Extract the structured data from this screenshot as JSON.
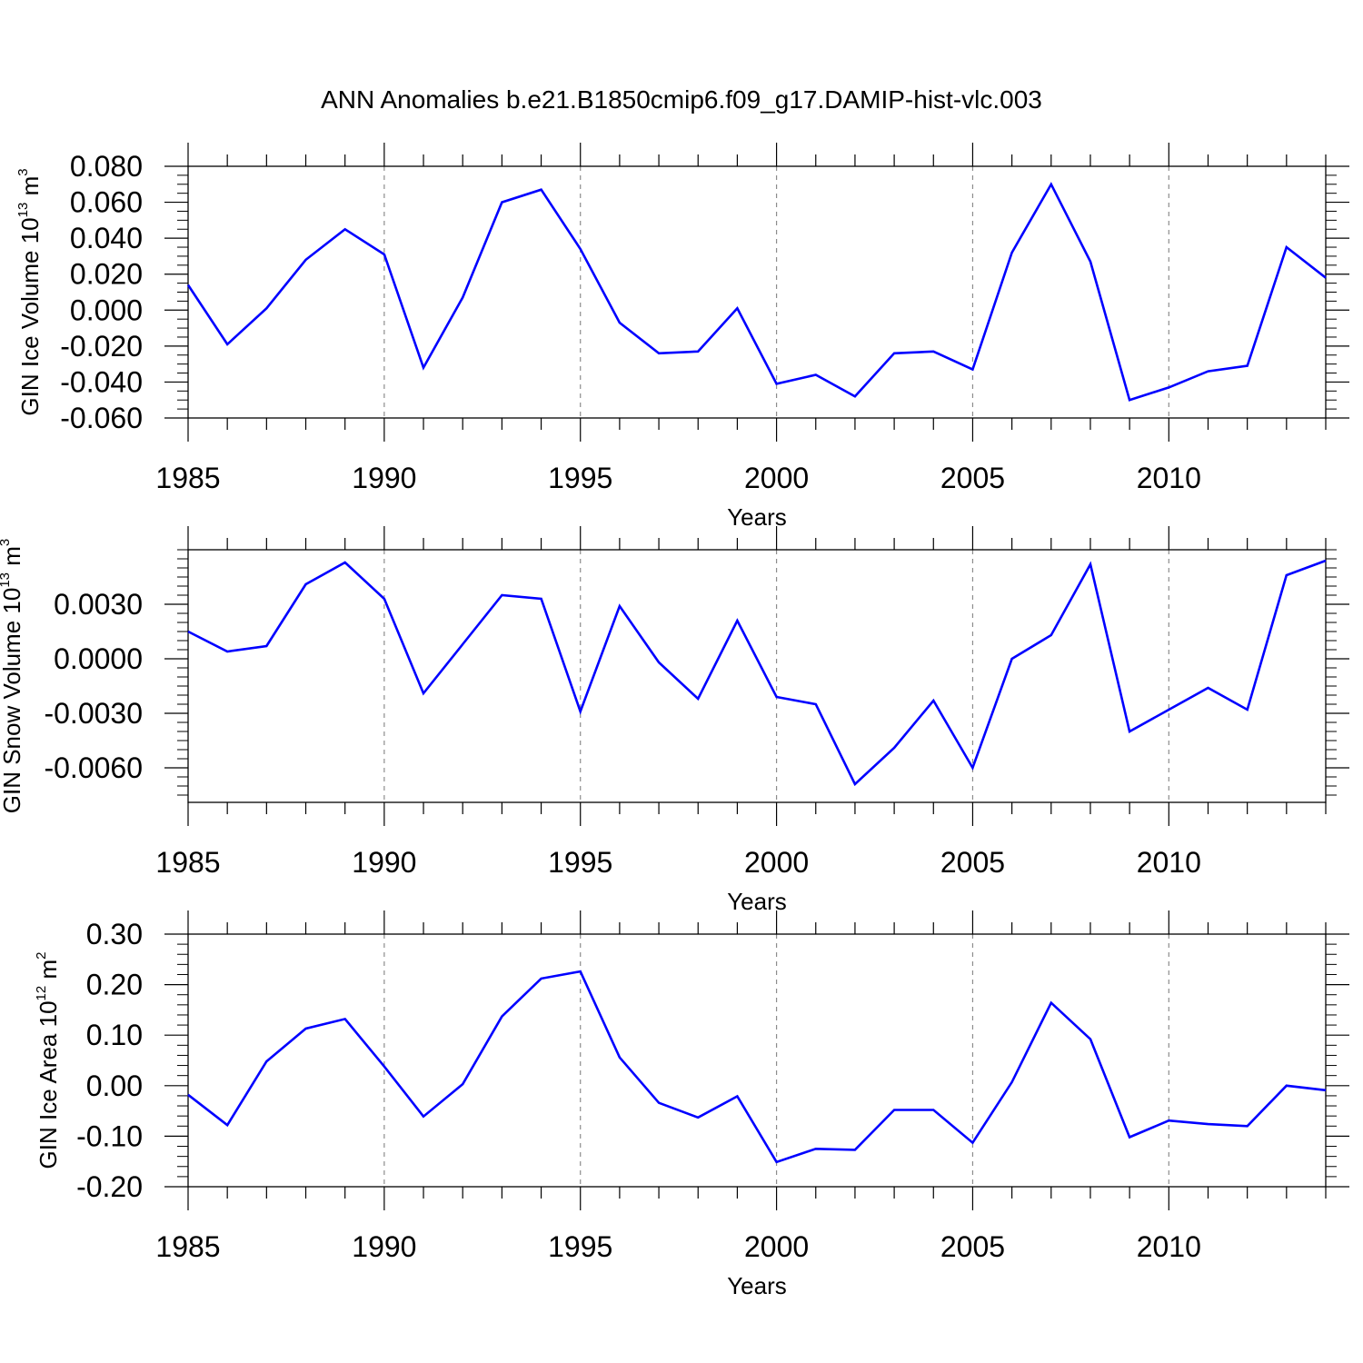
{
  "title": "ANN Anomalies b.e21.B1850cmip6.f09_g17.DAMIP-hist-vlc.003",
  "colors": {
    "line": "#0000ff",
    "axis": "#000000",
    "grid": "#8c8c8c"
  },
  "chart_data": [
    {
      "type": "line",
      "xlabel": "Years",
      "ylabel": {
        "main": "GIN Ice Volume 10",
        "exp": "13",
        "unit": " m",
        "unit_exp": "3"
      },
      "xlim": [
        1985,
        2014
      ],
      "ylim": [
        -0.06,
        0.08
      ],
      "x_ticks": [
        1985,
        1990,
        1995,
        2000,
        2005,
        2010
      ],
      "x_tick_labels": [
        "1985",
        "1990",
        "1995",
        "2000",
        "2005",
        "2010"
      ],
      "y_ticks": [
        -0.06,
        -0.04,
        -0.02,
        0.0,
        0.02,
        0.04,
        0.06,
        0.08
      ],
      "y_tick_labels": [
        "-0.060",
        "-0.040",
        "-0.020",
        "0.000",
        "0.020",
        "0.040",
        "0.060",
        "0.080"
      ],
      "y_minor_step": 0.005,
      "grid": "vertical dashed at major x ticks",
      "series": [
        {
          "x": [
            1985,
            1986,
            1987,
            1988,
            1989,
            1990,
            1991,
            1992,
            1993,
            1994,
            1995,
            1996,
            1997,
            1998,
            1999,
            2000,
            2001,
            2002,
            2003,
            2004,
            2005,
            2006,
            2007,
            2008,
            2009,
            2010,
            2011,
            2012,
            2013,
            2014
          ],
          "values": [
            0.014,
            -0.019,
            0.001,
            0.028,
            0.045,
            0.031,
            -0.032,
            0.007,
            0.06,
            0.067,
            0.034,
            -0.007,
            -0.024,
            -0.023,
            0.001,
            -0.041,
            -0.036,
            -0.048,
            -0.024,
            -0.023,
            -0.033,
            0.032,
            0.07,
            0.027,
            -0.05,
            -0.043,
            -0.034,
            -0.031,
            0.035,
            0.018
          ]
        }
      ]
    },
    {
      "type": "line",
      "xlabel": "Years",
      "ylabel": {
        "main": "GIN Snow Volume 10",
        "exp": "13",
        "unit": " m",
        "unit_exp": "3"
      },
      "xlim": [
        1985,
        2014
      ],
      "ylim": [
        -0.0079,
        0.006
      ],
      "x_ticks": [
        1985,
        1990,
        1995,
        2000,
        2005,
        2010
      ],
      "x_tick_labels": [
        "1985",
        "1990",
        "1995",
        "2000",
        "2005",
        "2010"
      ],
      "y_ticks": [
        -0.006,
        -0.003,
        0.0,
        0.003
      ],
      "y_tick_labels": [
        "-0.0060",
        "-0.0030",
        "0.0000",
        "0.0030"
      ],
      "y_minor_step": 0.0005,
      "grid": "vertical dashed at major x ticks",
      "series": [
        {
          "x": [
            1985,
            1986,
            1987,
            1988,
            1989,
            1990,
            1991,
            1992,
            1993,
            1994,
            1995,
            1996,
            1997,
            1998,
            1999,
            2000,
            2001,
            2002,
            2003,
            2004,
            2005,
            2006,
            2007,
            2008,
            2009,
            2010,
            2011,
            2012,
            2013,
            2014
          ],
          "values": [
            0.0015,
            0.0004,
            0.0007,
            0.0041,
            0.0053,
            0.0033,
            -0.0019,
            0.0008,
            0.0035,
            0.0033,
            -0.0029,
            0.0029,
            -0.0002,
            -0.0022,
            0.0021,
            -0.0021,
            -0.0025,
            -0.0069,
            -0.0049,
            -0.0023,
            -0.006,
            0.0,
            0.0013,
            0.0052,
            -0.004,
            -0.0028,
            -0.0016,
            -0.0028,
            0.0046,
            0.0054
          ]
        }
      ]
    },
    {
      "type": "line",
      "xlabel": "Years",
      "ylabel": {
        "main": "GIN Ice Area 10",
        "exp": "12",
        "unit": " m",
        "unit_exp": "2"
      },
      "xlim": [
        1985,
        2014
      ],
      "ylim": [
        -0.2,
        0.3
      ],
      "x_ticks": [
        1985,
        1990,
        1995,
        2000,
        2005,
        2010
      ],
      "x_tick_labels": [
        "1985",
        "1990",
        "1995",
        "2000",
        "2005",
        "2010"
      ],
      "y_ticks": [
        -0.2,
        -0.1,
        0.0,
        0.1,
        0.2,
        0.3
      ],
      "y_tick_labels": [
        "-0.20",
        "-0.10",
        "0.00",
        "0.10",
        "0.20",
        "0.30"
      ],
      "y_minor_step": 0.02,
      "grid": "vertical dashed at major x ticks",
      "series": [
        {
          "x": [
            1985,
            1986,
            1987,
            1988,
            1989,
            1990,
            1991,
            1992,
            1993,
            1994,
            1995,
            1996,
            1997,
            1998,
            1999,
            2000,
            2001,
            2002,
            2003,
            2004,
            2005,
            2006,
            2007,
            2008,
            2009,
            2010,
            2011,
            2012,
            2013,
            2014
          ],
          "values": [
            -0.018,
            -0.078,
            0.048,
            0.113,
            0.132,
            0.038,
            -0.061,
            0.003,
            0.137,
            0.212,
            0.226,
            0.056,
            -0.034,
            -0.063,
            -0.021,
            -0.151,
            -0.125,
            -0.127,
            -0.048,
            -0.048,
            -0.113,
            0.007,
            0.164,
            0.092,
            -0.102,
            -0.069,
            -0.076,
            -0.08,
            0.0,
            -0.009
          ]
        }
      ]
    }
  ]
}
